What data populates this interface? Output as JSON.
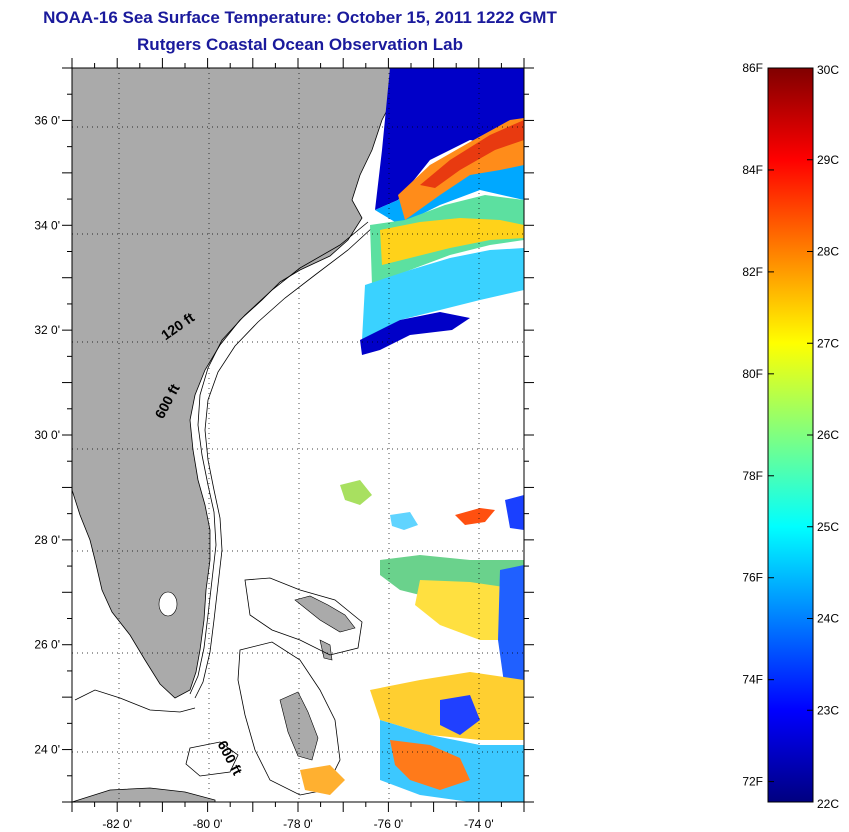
{
  "title": "NOAA-16 Sea Surface Temperature:  October 15, 2011 1222 GMT",
  "subtitle": "Rutgers Coastal Ocean Observation Lab",
  "map": {
    "lon_range": [
      -83,
      -73
    ],
    "lat_range": [
      23,
      37
    ],
    "x_ticks": [
      {
        "value": -82,
        "label": "-82 0'"
      },
      {
        "value": -80,
        "label": "-80 0'"
      },
      {
        "value": -78,
        "label": "-78 0'"
      },
      {
        "value": -76,
        "label": "-76 0'"
      },
      {
        "value": -74,
        "label": "-74 0'"
      }
    ],
    "y_ticks": [
      {
        "value": 24,
        "label": "24 0'"
      },
      {
        "value": 26,
        "label": "26 0'"
      },
      {
        "value": 28,
        "label": "28 0'"
      },
      {
        "value": 30,
        "label": "30 0'"
      },
      {
        "value": 32,
        "label": "32 0'"
      },
      {
        "value": 34,
        "label": "34 0'"
      },
      {
        "value": 36,
        "label": "36 0'"
      }
    ],
    "grid": "dotted",
    "contour_labels": [
      {
        "text": "120 ft",
        "lon": -80.6,
        "lat": 32.0,
        "angle": -35
      },
      {
        "text": "600 ft",
        "lon": -80.8,
        "lat": 30.6,
        "angle": -62
      },
      {
        "text": "600 ft",
        "lon": -79.6,
        "lat": 23.8,
        "angle": 62
      }
    ],
    "colors": {
      "land": "#aaaaaa",
      "ocean": "#ffffff",
      "coast": "#000000"
    }
  },
  "colorbar": {
    "min_c": 22,
    "max_c": 30,
    "celsius_labels": [
      "30C",
      "29C",
      "28C",
      "27C",
      "26C",
      "25C",
      "24C",
      "23C",
      "22C"
    ],
    "fahrenheit_labels": [
      {
        "value_f": 86,
        "label": "86F"
      },
      {
        "value_f": 84,
        "label": "84F"
      },
      {
        "value_f": 82,
        "label": "82F"
      },
      {
        "value_f": 80,
        "label": "80F"
      },
      {
        "value_f": 78,
        "label": "78F"
      },
      {
        "value_f": 76,
        "label": "76F"
      },
      {
        "value_f": 74,
        "label": "74F"
      },
      {
        "value_f": 72,
        "label": "72F"
      }
    ],
    "gradient": [
      "#000080",
      "#0000ff",
      "#0080ff",
      "#00ffff",
      "#80ff80",
      "#ffff00",
      "#ff8000",
      "#ff0000",
      "#800000"
    ]
  }
}
